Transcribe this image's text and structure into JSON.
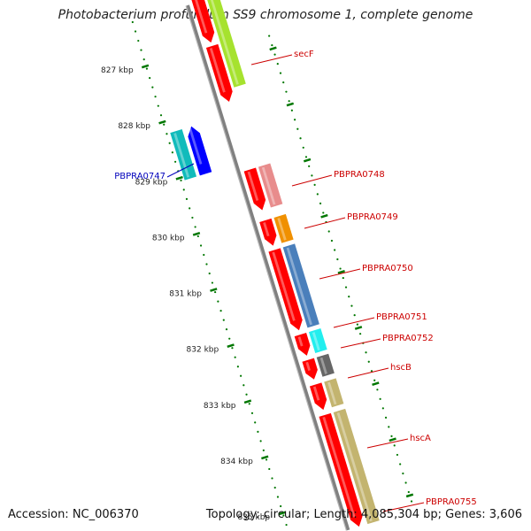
{
  "title": "Photobacterium profundum SS9 chromosome 1, complete genome",
  "footer": {
    "accession": "Accession: NC_006370",
    "summary": "Topology: circular; Length: 4,085,304 bp; Genes: 3,606"
  },
  "ticks": [
    {
      "label": "827 kbp"
    },
    {
      "label": "828 kbp"
    },
    {
      "label": "829 kbp"
    },
    {
      "label": "830 kbp"
    },
    {
      "label": "831 kbp"
    },
    {
      "label": "832 kbp"
    },
    {
      "label": "833 kbp"
    },
    {
      "label": "834 kbp"
    },
    {
      "label": "835 kbp"
    }
  ],
  "genes": [
    {
      "name": "secF",
      "color": "#cc0000",
      "strand": "+"
    },
    {
      "name": "PBPRA0747",
      "color": "#0000bb",
      "strand": "-"
    },
    {
      "name": "PBPRA0748",
      "color": "#cc0000",
      "strand": "+"
    },
    {
      "name": "PBPRA0749",
      "color": "#cc0000",
      "strand": "+"
    },
    {
      "name": "PBPRA0750",
      "color": "#cc0000",
      "strand": "+"
    },
    {
      "name": "PBPRA0751",
      "color": "#cc0000",
      "strand": "+"
    },
    {
      "name": "PBPRA0752",
      "color": "#cc0000",
      "strand": "+"
    },
    {
      "name": "hscB",
      "color": "#cc0000",
      "strand": "+"
    },
    {
      "name": "hscA",
      "color": "#cc0000",
      "strand": "+"
    },
    {
      "name": "PBPRA0755",
      "color": "#cc0000",
      "strand": "+"
    }
  ],
  "colors": {
    "backbone": "#808080",
    "forward_cds": "#ff0000",
    "reverse_cds": "#0000ff",
    "tick": "#007700",
    "label_forward": "#cc0000",
    "label_reverse": "#0000bb"
  }
}
